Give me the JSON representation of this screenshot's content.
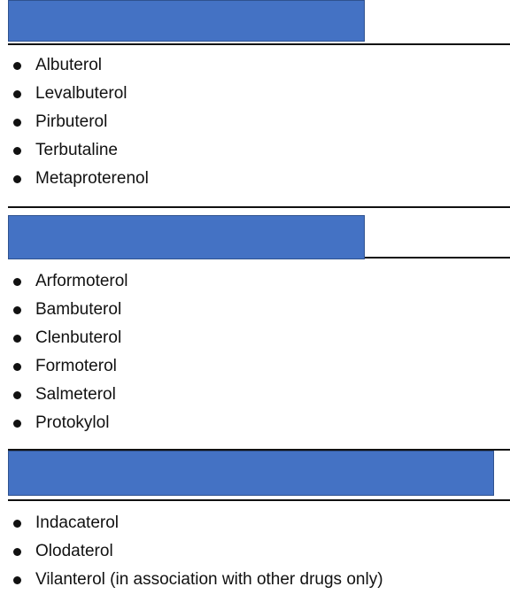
{
  "sections": [
    {
      "header_color": "#4472c4",
      "items": [
        "Albuterol",
        "Levalbuterol",
        "Pirbuterol",
        "Terbutaline",
        "Metaproterenol"
      ]
    },
    {
      "header_color": "#4472c4",
      "items": [
        "Arformoterol",
        "Bambuterol",
        "Clenbuterol",
        "Formoterol",
        "Salmeterol",
        "Protokylol"
      ]
    },
    {
      "header_color": "#4472c4",
      "items": [
        "Indacaterol",
        "Olodaterol",
        "Vilanterol (in association with other drugs only)"
      ]
    }
  ]
}
